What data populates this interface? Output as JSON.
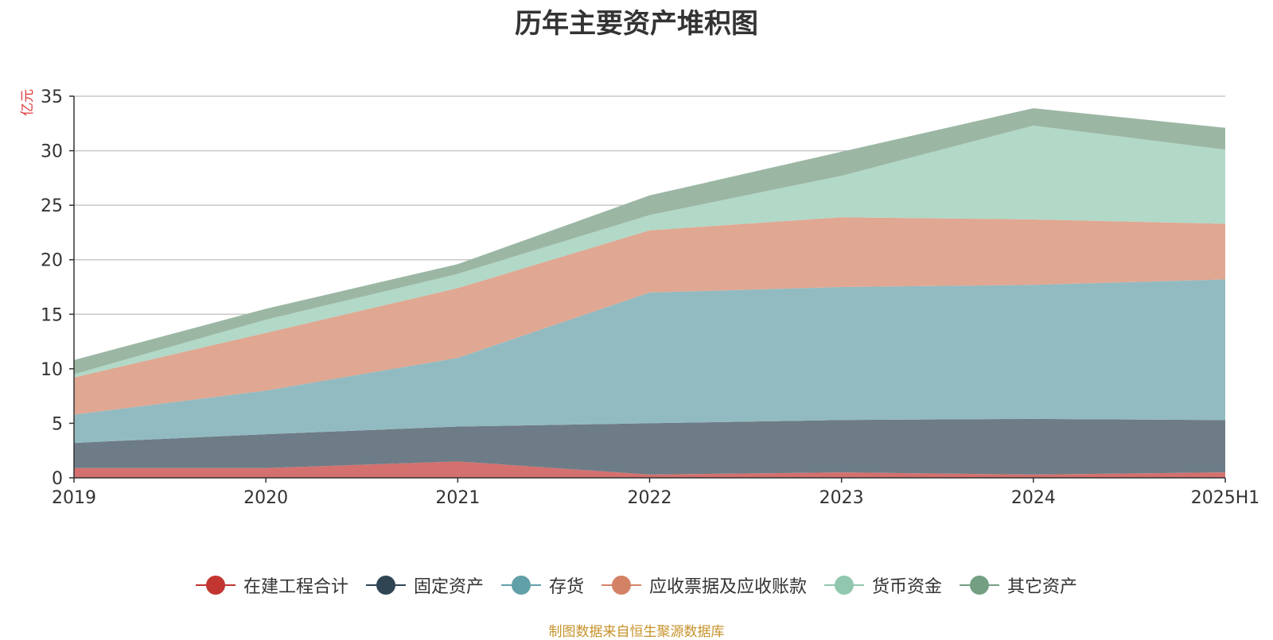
{
  "chart_data": {
    "type": "area",
    "stacked": true,
    "title": "历年主要资产堆积图",
    "unit_label": "亿元",
    "x": [
      "2019",
      "2020",
      "2021",
      "2022",
      "2023",
      "2024",
      "2025H1"
    ],
    "ylim": [
      0,
      35
    ],
    "yticks": [
      0,
      5,
      10,
      15,
      20,
      25,
      30,
      35
    ],
    "grid": true,
    "legend_position": "bottom",
    "series": [
      {
        "name": "在建工程合计",
        "color": "#c23531",
        "fill": "#d4706e",
        "values": [
          0.9,
          0.9,
          1.5,
          0.3,
          0.5,
          0.3,
          0.5
        ]
      },
      {
        "name": "固定资产",
        "color": "#2f4554",
        "fill": "#6e7c87",
        "values": [
          2.3,
          3.1,
          3.2,
          4.7,
          4.8,
          5.1,
          4.8
        ]
      },
      {
        "name": "存货",
        "color": "#61a0a8",
        "fill": "#92bbc1",
        "values": [
          2.6,
          4.0,
          6.3,
          12.0,
          12.2,
          12.3,
          12.9
        ]
      },
      {
        "name": "应收票据及应收账款",
        "color": "#d48265",
        "fill": "#e0a792",
        "values": [
          3.4,
          5.3,
          6.4,
          5.7,
          6.4,
          6.0,
          5.1
        ]
      },
      {
        "name": "货币资金",
        "color": "#91c7ae",
        "fill": "#b2d8c7",
        "values": [
          0.3,
          1.2,
          1.3,
          1.4,
          3.8,
          8.6,
          6.8
        ]
      },
      {
        "name": "其它资产",
        "color": "#749f83",
        "fill": "#9bb7a4",
        "values": [
          1.3,
          1.0,
          0.9,
          1.8,
          2.2,
          1.6,
          2.0
        ]
      }
    ]
  },
  "source_note": "制图数据来自恒生聚源数据库"
}
